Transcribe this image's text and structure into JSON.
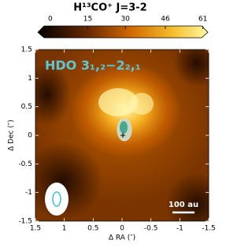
{
  "chart_data": {
    "type": "heatmap",
    "title": "H¹³CO⁺ J=3-2",
    "annotation": "HDO 3₁,₂−2₂,₁",
    "scale_bar": "100 au",
    "xlabel": "Δ RA (″)",
    "ylabel": "Δ Dec (″)",
    "xlim": [
      1.5,
      -1.5
    ],
    "xticks": [
      1.5,
      1,
      0.5,
      0,
      -0.5,
      -1,
      -1.5
    ],
    "ylim": [
      -1.5,
      1.5
    ],
    "yticks": [
      -1.5,
      -1,
      -0.5,
      0,
      0.5,
      1,
      1.5
    ],
    "clim": [
      -5,
      63
    ],
    "cticks": [
      0,
      15,
      30,
      46,
      61
    ]
  }
}
